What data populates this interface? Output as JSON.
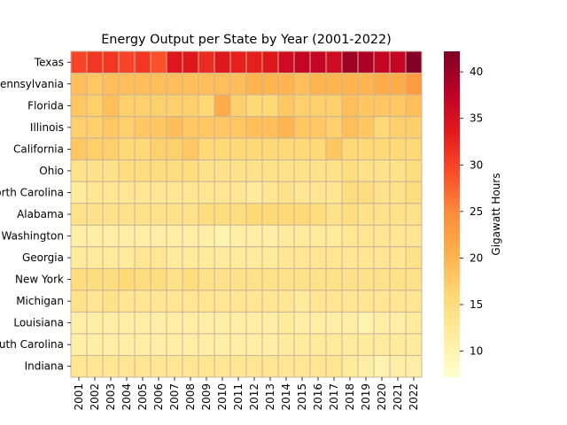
{
  "chart_data": {
    "type": "heatmap",
    "title": "Energy Output per State by Year (2001-2022)",
    "xlabel": "",
    "ylabel": "",
    "colorbar_label": "Gigawatt Hours",
    "colormap": "YlOrRd",
    "color_range": [
      7.2,
      42.2
    ],
    "colorbar_ticks": [
      10,
      15,
      20,
      25,
      30,
      35,
      40
    ],
    "x_categories": [
      "2001",
      "2002",
      "2003",
      "2004",
      "2005",
      "2006",
      "2007",
      "2008",
      "2009",
      "2010",
      "2011",
      "2012",
      "2013",
      "2014",
      "2015",
      "2016",
      "2017",
      "2018",
      "2019",
      "2020",
      "2021",
      "2022"
    ],
    "y_categories": [
      "Texas",
      "Pennsylvania",
      "Florida",
      "Illinois",
      "California",
      "Ohio",
      "North Carolina",
      "Alabama",
      "Washington",
      "Georgia",
      "New York",
      "Michigan",
      "Louisiana",
      "South Carolina",
      "Indiana"
    ],
    "values": [
      [
        30,
        31,
        31,
        30,
        31,
        29,
        34,
        34,
        32,
        34,
        33,
        33,
        34,
        36,
        37,
        37,
        36,
        40,
        39,
        37,
        37,
        42
      ],
      [
        19,
        18,
        19,
        19,
        19,
        19,
        19,
        19,
        19,
        19,
        19,
        20,
        20,
        20,
        19,
        20,
        20,
        20,
        20,
        21,
        21,
        23
      ],
      [
        18,
        17,
        19,
        17,
        17,
        17,
        17,
        17,
        16,
        21,
        17,
        16,
        16,
        18,
        17,
        17,
        17,
        19,
        18,
        18,
        18,
        19
      ],
      [
        17,
        17,
        18,
        17,
        18,
        18,
        19,
        18,
        18,
        18,
        18,
        19,
        19,
        20,
        18,
        18,
        17,
        19,
        18,
        16,
        17,
        17
      ],
      [
        18,
        17,
        17,
        16,
        16,
        17,
        17,
        18,
        16,
        16,
        16,
        16,
        16,
        16,
        16,
        16,
        18,
        16,
        16,
        16,
        16,
        16
      ],
      [
        14,
        14,
        14,
        15,
        15,
        15,
        15,
        15,
        14,
        14,
        14,
        14,
        14,
        14,
        14,
        14,
        14,
        15,
        14,
        14,
        14,
        15
      ],
      [
        12,
        13,
        13,
        13,
        13,
        13,
        13,
        13,
        13,
        13,
        13,
        12,
        13,
        14,
        13,
        13,
        13,
        15,
        15,
        14,
        14,
        15
      ],
      [
        14,
        14,
        14,
        14,
        14,
        14,
        14,
        14,
        15,
        15,
        15,
        16,
        16,
        16,
        16,
        15,
        14,
        15,
        14,
        14,
        14,
        14
      ],
      [
        11,
        11,
        11,
        11,
        11,
        11,
        11,
        11,
        11,
        10,
        11,
        11,
        11,
        12,
        12,
        12,
        12,
        13,
        13,
        13,
        13,
        13
      ],
      [
        12,
        12,
        12,
        12,
        13,
        13,
        12,
        12,
        12,
        12,
        12,
        12,
        12,
        13,
        13,
        13,
        13,
        13,
        13,
        13,
        13,
        14
      ],
      [
        15,
        15,
        15,
        16,
        15,
        15,
        14,
        15,
        14,
        14,
        14,
        14,
        14,
        14,
        14,
        14,
        14,
        14,
        14,
        14,
        14,
        14
      ],
      [
        14,
        13,
        14,
        13,
        13,
        13,
        13,
        13,
        13,
        13,
        13,
        13,
        13,
        13,
        12,
        13,
        13,
        13,
        13,
        13,
        13,
        13
      ],
      [
        11,
        11,
        11,
        11,
        11,
        11,
        11,
        11,
        11,
        11,
        11,
        11,
        11,
        12,
        11,
        11,
        11,
        11,
        10,
        11,
        11,
        12
      ],
      [
        11,
        11,
        11,
        11,
        11,
        11,
        11,
        11,
        11,
        11,
        11,
        11,
        11,
        12,
        12,
        12,
        12,
        12,
        12,
        12,
        12,
        12
      ],
      [
        13,
        13,
        13,
        13,
        13,
        13,
        13,
        13,
        13,
        13,
        13,
        13,
        13,
        13,
        13,
        13,
        13,
        12,
        11,
        10,
        11,
        11
      ]
    ]
  }
}
